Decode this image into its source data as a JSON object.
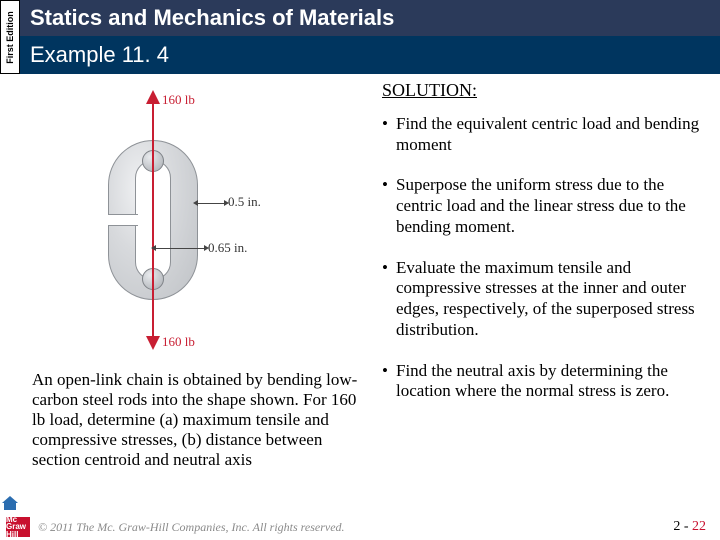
{
  "side_tab": "First\nEdition",
  "title": "Statics and Mechanics of Materials",
  "subtitle": "Example 11. 4",
  "solution_heading": "SOLUTION:",
  "bullets": [
    "Find the equivalent centric load and bending moment",
    "Superpose the uniform stress due to the centric load and the linear stress due to the bending moment.",
    "Evaluate the maximum tensile and compressive stresses at the inner and outer edges, respectively, of the superposed stress distribution.",
    "Find the neutral axis by determining the location where the normal stress is zero."
  ],
  "problem_text": "An open-link chain is obtained by bending low-carbon steel rods into the shape shown.  For 160 lb load, determine (a) maximum tensile and compressive stresses, (b) distance between section centroid and neutral axis",
  "diagram": {
    "load_label_top": "160 lb",
    "load_label_bottom": "160 lb",
    "dim1": "0.5 in.",
    "dim2": "0.65 in.",
    "load_color": "#c81e32",
    "body_fill": "#d8dadd",
    "body_border": "#8e9297"
  },
  "footer": {
    "logo_text": "Mc\nGraw\nHill",
    "copyright": "© 2011 The Mc. Graw-Hill Companies, Inc. All rights reserved.",
    "chapter": "2",
    "page": "22"
  },
  "colors": {
    "title_bg": "#2b3a5a",
    "subtitle_bg": "#00355f",
    "accent_red": "#c8102e"
  }
}
